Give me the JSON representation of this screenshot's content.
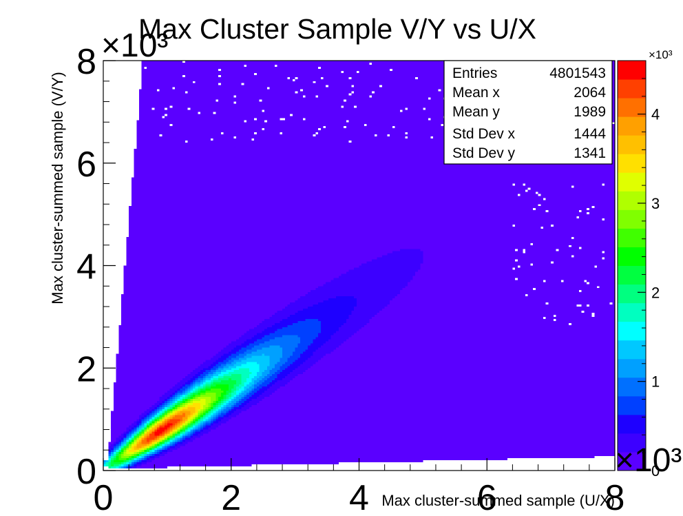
{
  "chart_data": {
    "type": "heatmap",
    "title": "Max Cluster Sample V/Y vs U/X",
    "xlabel": "Max cluster-summed sample (U/X)",
    "ylabel": "Max cluster-summed sample (V/Y)",
    "xlim": [
      0,
      8000
    ],
    "ylim": [
      0,
      8000
    ],
    "x_ticks": [
      0,
      2,
      4,
      6,
      8
    ],
    "y_ticks": [
      0,
      2,
      4,
      6,
      8
    ],
    "x_exponent": "×10³",
    "y_exponent": "×10³",
    "z_exponent": "×10³",
    "zlim": [
      0,
      4600
    ],
    "z_ticks": [
      0,
      1,
      2,
      3,
      4
    ],
    "z_top_exponent": "×10³",
    "grid": false,
    "stats_box": {
      "entries_label": "Entries",
      "entries": "4801543",
      "mean_x_label": "Mean x",
      "mean_x": "2064",
      "mean_y_label": "Mean y",
      "mean_y": "1989",
      "std_x_label": "Std Dev x",
      "std_x": "1444",
      "std_y_label": "Std Dev y",
      "std_y": "1341",
      "placement": "top-right"
    },
    "palette": [
      "#5a00ff",
      "#3c00ff",
      "#1e00ff",
      "#0040ff",
      "#0070ff",
      "#00a0ff",
      "#00c8ff",
      "#00ffff",
      "#00ffc0",
      "#00ff80",
      "#00ff40",
      "#00ff00",
      "#40ff00",
      "#80ff00",
      "#b0ff00",
      "#e0ff00",
      "#ffe000",
      "#ffc000",
      "#ffa000",
      "#ff7000",
      "#ff4000",
      "#ff0000"
    ],
    "background_color": "#5a00ff",
    "ridge": {
      "slope": 0.86,
      "peak_x": 900,
      "peak_y": 800,
      "peak_count": 4500
    }
  }
}
